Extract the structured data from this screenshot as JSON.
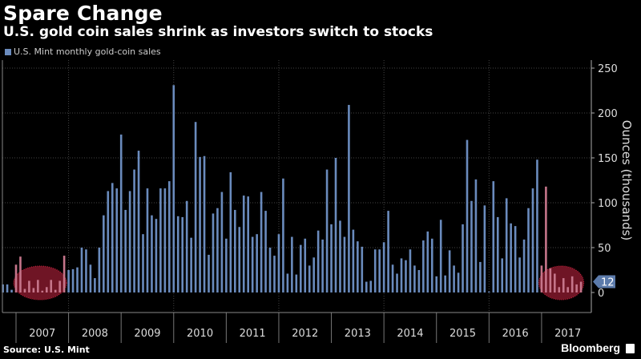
{
  "header": {
    "title": "Spare Change",
    "subtitle": "U.S. gold coin sales shrink as investors switch to stocks"
  },
  "footer": {
    "source": "Source: U.S. Mint",
    "brand": "Bloomberg"
  },
  "colors": {
    "background": "#000000",
    "bar": "#6a8bbd",
    "highlight_circle": "#8b1a2e",
    "last_value_tag": "#5c7bab"
  },
  "chart_data": {
    "type": "bar",
    "title": "Spare Change",
    "subtitle": "U.S. gold coin sales shrink as investors switch to stocks",
    "legend": "top-left",
    "series": [
      {
        "name": "U.S. Mint monthly gold-coin sales",
        "x": [
          "2006-10",
          "2006-11",
          "2006-12",
          "2007-01",
          "2007-02",
          "2007-03",
          "2007-04",
          "2007-05",
          "2007-06",
          "2007-07",
          "2007-08",
          "2007-09",
          "2007-10",
          "2007-11",
          "2007-12",
          "2008-01",
          "2008-02",
          "2008-03",
          "2008-04",
          "2008-05",
          "2008-06",
          "2008-07",
          "2008-08",
          "2008-09",
          "2008-10",
          "2008-11",
          "2008-12",
          "2009-01",
          "2009-02",
          "2009-03",
          "2009-04",
          "2009-05",
          "2009-06",
          "2009-07",
          "2009-08",
          "2009-09",
          "2009-10",
          "2009-11",
          "2009-12",
          "2010-01",
          "2010-02",
          "2010-03",
          "2010-04",
          "2010-05",
          "2010-06",
          "2010-07",
          "2010-08",
          "2010-09",
          "2010-10",
          "2010-11",
          "2010-12",
          "2011-01",
          "2011-02",
          "2011-03",
          "2011-04",
          "2011-05",
          "2011-06",
          "2011-07",
          "2011-08",
          "2011-09",
          "2011-10",
          "2011-11",
          "2011-12",
          "2012-01",
          "2012-02",
          "2012-03",
          "2012-04",
          "2012-05",
          "2012-06",
          "2012-07",
          "2012-08",
          "2012-09",
          "2012-10",
          "2012-11",
          "2012-12",
          "2013-01",
          "2013-02",
          "2013-03",
          "2013-04",
          "2013-05",
          "2013-06",
          "2013-07",
          "2013-08",
          "2013-09",
          "2013-10",
          "2013-11",
          "2013-12",
          "2014-01",
          "2014-02",
          "2014-03",
          "2014-04",
          "2014-05",
          "2014-06",
          "2014-07",
          "2014-08",
          "2014-09",
          "2014-10",
          "2014-11",
          "2014-12",
          "2015-01",
          "2015-02",
          "2015-03",
          "2015-04",
          "2015-05",
          "2015-06",
          "2015-07",
          "2015-08",
          "2015-09",
          "2015-10",
          "2015-11",
          "2015-12",
          "2016-01",
          "2016-02",
          "2016-03",
          "2016-04",
          "2016-05",
          "2016-06",
          "2016-07",
          "2016-08",
          "2016-09",
          "2016-10",
          "2016-11",
          "2016-12",
          "2017-01",
          "2017-02",
          "2017-03",
          "2017-04",
          "2017-05",
          "2017-06",
          "2017-07",
          "2017-08",
          "2017-09",
          "2017-10"
        ],
        "values": [
          9,
          9,
          3,
          31,
          40,
          4,
          13,
          5,
          14,
          2,
          6,
          14,
          3,
          13,
          41,
          25,
          26,
          28,
          50,
          48,
          31,
          16,
          50,
          86,
          113,
          122,
          116,
          176,
          92,
          113,
          137,
          158,
          65,
          116,
          86,
          82,
          116,
          116,
          124,
          231,
          85,
          84,
          102,
          61,
          190,
          151,
          152,
          42,
          88,
          94,
          112,
          60,
          134,
          92,
          73,
          108,
          107,
          62,
          65,
          112,
          91,
          50,
          41,
          65,
          127,
          21,
          62,
          20,
          53,
          60,
          30,
          39,
          69,
          59,
          137,
          76,
          150,
          80,
          62,
          209,
          70,
          57,
          51,
          12,
          13,
          48,
          48,
          56,
          91,
          31,
          21,
          38,
          36,
          48,
          30,
          25,
          58,
          68,
          60,
          18,
          81,
          19,
          47,
          30,
          22,
          76,
          170,
          102,
          126,
          34,
          97,
          1,
          124,
          84,
          38,
          105,
          77,
          74,
          39,
          59,
          94,
          116,
          148,
          30,
          118,
          27,
          21,
          6,
          16,
          6,
          18,
          9,
          12
        ]
      }
    ],
    "ylabel": "Ounces (thousands)",
    "ylim": [
      0,
      250
    ],
    "yticks": [
      "0",
      "50",
      "100",
      "150",
      "200",
      "250"
    ],
    "xticks": [
      "2007",
      "2008",
      "2009",
      "2010",
      "2011",
      "2012",
      "2013",
      "2014",
      "2015",
      "2016",
      "2017"
    ],
    "grid": true,
    "last_value_label": "12",
    "highlighted_periods": [
      "2007",
      "2017"
    ]
  }
}
